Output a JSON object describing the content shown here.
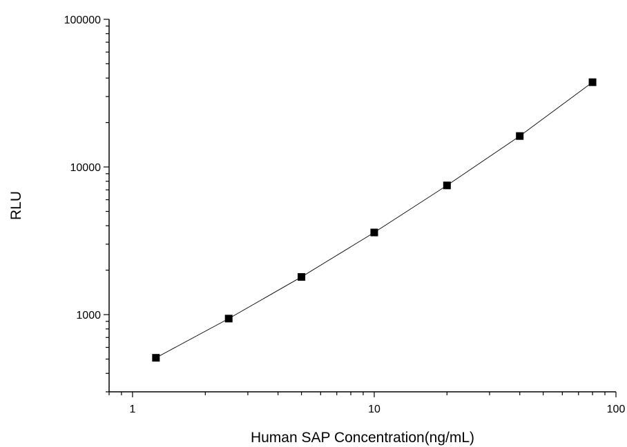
{
  "chart_data": {
    "type": "line",
    "title": "",
    "xlabel": "Human SAP Concentration(ng/mL)",
    "ylabel": "RLU",
    "x_scale": "log",
    "y_scale": "log",
    "xlim": [
      0.8,
      100
    ],
    "ylim": [
      300,
      100000
    ],
    "x_ticks": [
      1,
      10,
      100
    ],
    "x_tick_labels": [
      "1",
      "10",
      "100"
    ],
    "y_ticks": [
      1000,
      10000,
      100000
    ],
    "y_tick_labels": [
      "1000",
      "10000",
      "100000"
    ],
    "grid": false,
    "legend": "none",
    "marker": "square",
    "colors": {
      "line": "#000000",
      "marker": "#000000",
      "axis": "#000000"
    },
    "series": [
      {
        "x": [
          1.25,
          2.5,
          5,
          10,
          20,
          40,
          80
        ],
        "y": [
          510,
          940,
          1800,
          3600,
          7500,
          16200,
          37500
        ]
      }
    ]
  }
}
